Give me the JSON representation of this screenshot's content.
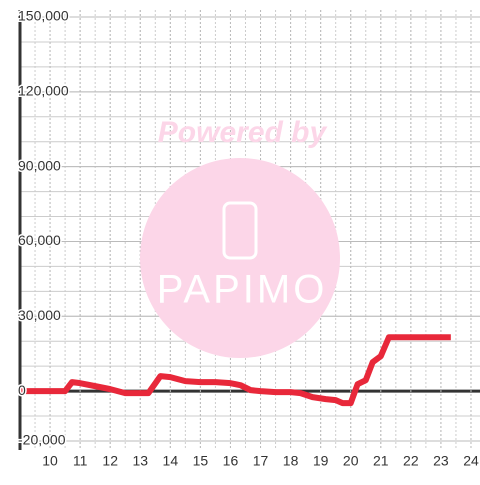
{
  "chart_data": {
    "type": "line",
    "watermark": {
      "top": "Powered by",
      "logo": "PAPIMO"
    },
    "x": [
      9,
      10,
      10.5,
      10.73,
      11,
      11.5,
      12,
      12.5,
      13.27,
      13.67,
      14,
      14.5,
      15,
      15.5,
      16,
      16.33,
      16.67,
      17,
      17.5,
      18,
      18.33,
      18.73,
      19.17,
      19.5,
      19.73,
      20,
      20.23,
      20.5,
      20.73,
      21,
      21.27,
      23.33
    ],
    "series": [
      {
        "color": "#e8283a",
        "values": [
          0,
          0,
          0,
          3600,
          3200,
          2000,
          800,
          -800,
          -800,
          6000,
          5600,
          4000,
          3600,
          3600,
          3200,
          2400,
          400,
          0,
          -400,
          -400,
          -800,
          -2400,
          -3200,
          -3600,
          -4800,
          -4800,
          2800,
          4400,
          11600,
          14000,
          21600,
          21600
        ]
      }
    ],
    "xlim": [
      9,
      24.3
    ],
    "xticks": [
      10,
      11,
      12,
      13,
      14,
      15,
      16,
      17,
      18,
      19,
      20,
      21,
      22,
      23,
      24
    ],
    "ylim": [
      -20000,
      150000
    ],
    "yticks": [
      {
        "value": -20000,
        "label": "-20,000"
      },
      0,
      {
        "value": 30000,
        "label": "30,000"
      },
      {
        "value": 60000,
        "label": "60,000"
      },
      {
        "value": 90000,
        "label": "90,000"
      },
      {
        "value": 120000,
        "label": "120,000"
      },
      {
        "value": 150000,
        "label": "150,000"
      }
    ],
    "ygrid_step": 10000,
    "xgrid_step": 0.5,
    "grid": true
  }
}
